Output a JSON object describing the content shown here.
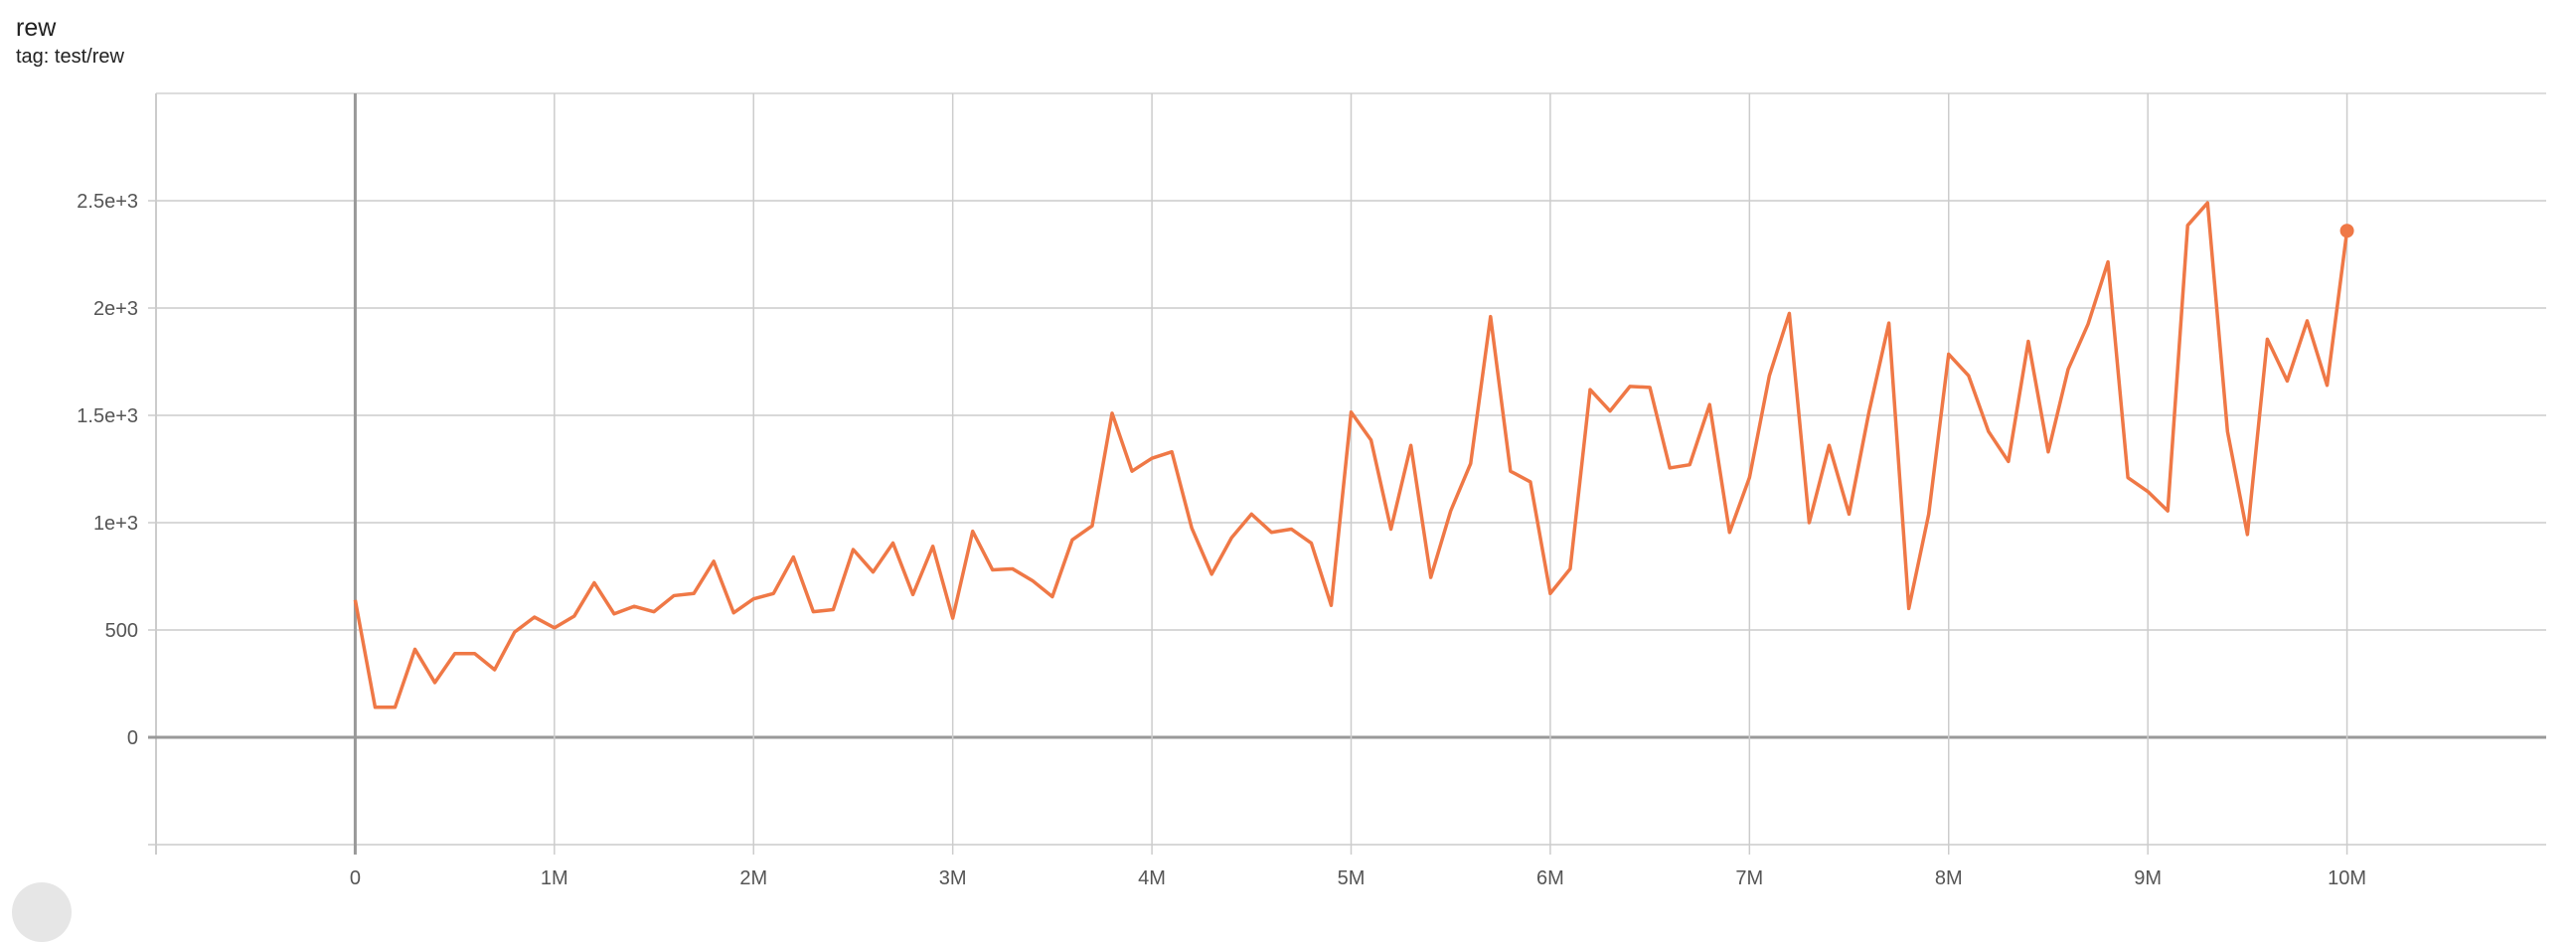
{
  "card": {
    "title": "rew",
    "subtitle": "tag: test/rew"
  },
  "chart_data": {
    "type": "line",
    "title": "rew",
    "subtitle": "tag: test/rew",
    "xlim": [
      -1000000,
      11000000
    ],
    "ylim": [
      -500,
      3000
    ],
    "grid": true,
    "color": "#ef7846",
    "x_ticks": [
      {
        "v": 0,
        "label": "0"
      },
      {
        "v": 1000000,
        "label": "1M"
      },
      {
        "v": 2000000,
        "label": "2M"
      },
      {
        "v": 3000000,
        "label": "3M"
      },
      {
        "v": 4000000,
        "label": "4M"
      },
      {
        "v": 5000000,
        "label": "5M"
      },
      {
        "v": 6000000,
        "label": "6M"
      },
      {
        "v": 7000000,
        "label": "7M"
      },
      {
        "v": 8000000,
        "label": "8M"
      },
      {
        "v": 9000000,
        "label": "9M"
      },
      {
        "v": 10000000,
        "label": "10M"
      }
    ],
    "y_ticks": [
      {
        "v": -500,
        "label": ""
      },
      {
        "v": 0,
        "label": "0"
      },
      {
        "v": 500,
        "label": "500"
      },
      {
        "v": 1000,
        "label": "1e+3"
      },
      {
        "v": 1500,
        "label": "1.5e+3"
      },
      {
        "v": 2000,
        "label": "2e+3"
      },
      {
        "v": 2500,
        "label": "2.5e+3"
      }
    ],
    "x_step": 100000,
    "values": [
      640,
      140,
      140,
      410,
      255,
      390,
      390,
      315,
      490,
      560,
      510,
      565,
      720,
      575,
      610,
      585,
      660,
      670,
      820,
      580,
      645,
      670,
      840,
      585,
      595,
      875,
      770,
      905,
      665,
      890,
      555,
      960,
      780,
      785,
      730,
      655,
      920,
      985,
      1510,
      1240,
      1300,
      1330,
      975,
      760,
      930,
      1040,
      955,
      970,
      905,
      615,
      1515,
      1385,
      970,
      1360,
      745,
      1055,
      1275,
      1960,
      1240,
      1190,
      670,
      785,
      1620,
      1520,
      1635,
      1630,
      1255,
      1270,
      1550,
      955,
      1210,
      1685,
      1975,
      1000,
      1360,
      1040,
      1515,
      1930,
      600,
      1040,
      1785,
      1685,
      1425,
      1285,
      1845,
      1330,
      1715,
      1925,
      2215,
      1210,
      1145,
      1055,
      2385,
      2490,
      1425,
      945,
      1855,
      1660,
      1940,
      1640,
      2360
    ]
  }
}
